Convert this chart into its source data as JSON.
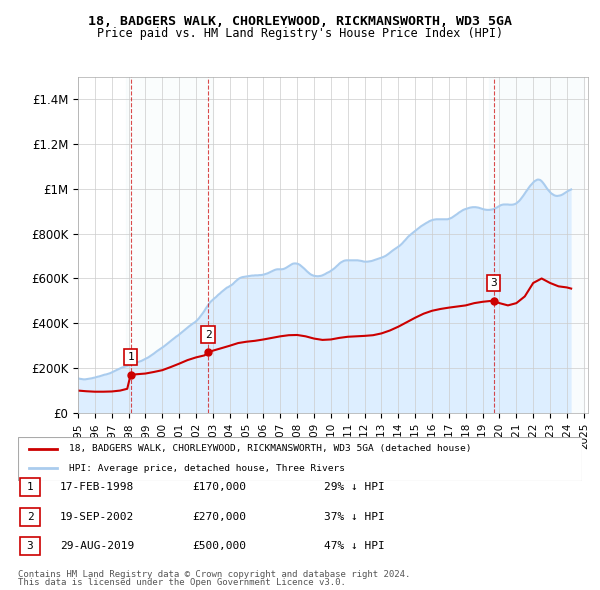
{
  "title": "18, BADGERS WALK, CHORLEYWOOD, RICKMANSWORTH, WD3 5GA",
  "subtitle": "Price paid vs. HM Land Registry's House Price Index (HPI)",
  "red_label": "18, BADGERS WALK, CHORLEYWOOD, RICKMANSWORTH, WD3 5GA (detached house)",
  "blue_label": "HPI: Average price, detached house, Three Rivers",
  "footer1": "Contains HM Land Registry data © Crown copyright and database right 2024.",
  "footer2": "This data is licensed under the Open Government Licence v3.0.",
  "sales": [
    {
      "num": 1,
      "date_str": "17-FEB-1998",
      "date_x": 1998.12,
      "price": 170000,
      "pct": "29% ↓ HPI"
    },
    {
      "num": 2,
      "date_str": "19-SEP-2002",
      "date_x": 2002.72,
      "price": 270000,
      "pct": "37% ↓ HPI"
    },
    {
      "num": 3,
      "date_str": "29-AUG-2019",
      "date_x": 2019.66,
      "price": 500000,
      "pct": "47% ↓ HPI"
    }
  ],
  "hpi_x": [
    1995.0,
    1995.08,
    1995.17,
    1995.25,
    1995.33,
    1995.42,
    1995.5,
    1995.58,
    1995.67,
    1995.75,
    1995.83,
    1995.92,
    1996.0,
    1996.08,
    1996.17,
    1996.25,
    1996.33,
    1996.42,
    1996.5,
    1996.58,
    1996.67,
    1996.75,
    1996.83,
    1996.92,
    1997.0,
    1997.08,
    1997.17,
    1997.25,
    1997.33,
    1997.42,
    1997.5,
    1997.58,
    1997.67,
    1997.75,
    1997.83,
    1997.92,
    1998.0,
    1998.08,
    1998.17,
    1998.25,
    1998.33,
    1998.42,
    1998.5,
    1998.58,
    1998.67,
    1998.75,
    1998.83,
    1998.92,
    1999.0,
    1999.08,
    1999.17,
    1999.25,
    1999.33,
    1999.42,
    1999.5,
    1999.58,
    1999.67,
    1999.75,
    1999.83,
    1999.92,
    2000.0,
    2000.08,
    2000.17,
    2000.25,
    2000.33,
    2000.42,
    2000.5,
    2000.58,
    2000.67,
    2000.75,
    2000.83,
    2000.92,
    2001.0,
    2001.08,
    2001.17,
    2001.25,
    2001.33,
    2001.42,
    2001.5,
    2001.58,
    2001.67,
    2001.75,
    2001.83,
    2001.92,
    2002.0,
    2002.08,
    2002.17,
    2002.25,
    2002.33,
    2002.42,
    2002.5,
    2002.58,
    2002.67,
    2002.75,
    2002.83,
    2002.92,
    2003.0,
    2003.08,
    2003.17,
    2003.25,
    2003.33,
    2003.42,
    2003.5,
    2003.58,
    2003.67,
    2003.75,
    2003.83,
    2003.92,
    2004.0,
    2004.08,
    2004.17,
    2004.25,
    2004.33,
    2004.42,
    2004.5,
    2004.58,
    2004.67,
    2004.75,
    2004.83,
    2004.92,
    2005.0,
    2005.08,
    2005.17,
    2005.25,
    2005.33,
    2005.42,
    2005.5,
    2005.58,
    2005.67,
    2005.75,
    2005.83,
    2005.92,
    2006.0,
    2006.08,
    2006.17,
    2006.25,
    2006.33,
    2006.42,
    2006.5,
    2006.58,
    2006.67,
    2006.75,
    2006.83,
    2006.92,
    2007.0,
    2007.08,
    2007.17,
    2007.25,
    2007.33,
    2007.42,
    2007.5,
    2007.58,
    2007.67,
    2007.75,
    2007.83,
    2007.92,
    2008.0,
    2008.08,
    2008.17,
    2008.25,
    2008.33,
    2008.42,
    2008.5,
    2008.58,
    2008.67,
    2008.75,
    2008.83,
    2008.92,
    2009.0,
    2009.08,
    2009.17,
    2009.25,
    2009.33,
    2009.42,
    2009.5,
    2009.58,
    2009.67,
    2009.75,
    2009.83,
    2009.92,
    2010.0,
    2010.08,
    2010.17,
    2010.25,
    2010.33,
    2010.42,
    2010.5,
    2010.58,
    2010.67,
    2010.75,
    2010.83,
    2010.92,
    2011.0,
    2011.08,
    2011.17,
    2011.25,
    2011.33,
    2011.42,
    2011.5,
    2011.58,
    2011.67,
    2011.75,
    2011.83,
    2011.92,
    2012.0,
    2012.08,
    2012.17,
    2012.25,
    2012.33,
    2012.42,
    2012.5,
    2012.58,
    2012.67,
    2012.75,
    2012.83,
    2012.92,
    2013.0,
    2013.08,
    2013.17,
    2013.25,
    2013.33,
    2013.42,
    2013.5,
    2013.58,
    2013.67,
    2013.75,
    2013.83,
    2013.92,
    2014.0,
    2014.08,
    2014.17,
    2014.25,
    2014.33,
    2014.42,
    2014.5,
    2014.58,
    2014.67,
    2014.75,
    2014.83,
    2014.92,
    2015.0,
    2015.08,
    2015.17,
    2015.25,
    2015.33,
    2015.42,
    2015.5,
    2015.58,
    2015.67,
    2015.75,
    2015.83,
    2015.92,
    2016.0,
    2016.08,
    2016.17,
    2016.25,
    2016.33,
    2016.42,
    2016.5,
    2016.58,
    2016.67,
    2016.75,
    2016.83,
    2016.92,
    2017.0,
    2017.08,
    2017.17,
    2017.25,
    2017.33,
    2017.42,
    2017.5,
    2017.58,
    2017.67,
    2017.75,
    2017.83,
    2017.92,
    2018.0,
    2018.08,
    2018.17,
    2018.25,
    2018.33,
    2018.42,
    2018.5,
    2018.58,
    2018.67,
    2018.75,
    2018.83,
    2018.92,
    2019.0,
    2019.08,
    2019.17,
    2019.25,
    2019.33,
    2019.42,
    2019.5,
    2019.58,
    2019.67,
    2019.75,
    2019.83,
    2019.92,
    2020.0,
    2020.08,
    2020.17,
    2020.25,
    2020.33,
    2020.42,
    2020.5,
    2020.58,
    2020.67,
    2020.75,
    2020.83,
    2020.92,
    2021.0,
    2021.08,
    2021.17,
    2021.25,
    2021.33,
    2021.42,
    2021.5,
    2021.58,
    2021.67,
    2021.75,
    2021.83,
    2021.92,
    2022.0,
    2022.08,
    2022.17,
    2022.25,
    2022.33,
    2022.42,
    2022.5,
    2022.58,
    2022.67,
    2022.75,
    2022.83,
    2022.92,
    2023.0,
    2023.08,
    2023.17,
    2023.25,
    2023.33,
    2023.42,
    2023.5,
    2023.58,
    2023.67,
    2023.75,
    2023.83,
    2023.92,
    2024.0,
    2024.08,
    2024.17,
    2024.25
  ],
  "hpi_y": [
    155000,
    153000,
    152000,
    151000,
    150000,
    150000,
    151000,
    152000,
    153000,
    154000,
    155000,
    157000,
    158000,
    160000,
    162000,
    163000,
    165000,
    167000,
    169000,
    171000,
    172000,
    174000,
    176000,
    178000,
    181000,
    184000,
    187000,
    190000,
    193000,
    196000,
    199000,
    202000,
    204000,
    206000,
    208000,
    210000,
    213000,
    216000,
    218000,
    220000,
    222000,
    224000,
    226000,
    228000,
    230000,
    232000,
    235000,
    238000,
    241000,
    244000,
    248000,
    252000,
    256000,
    260000,
    265000,
    270000,
    275000,
    279000,
    283000,
    287000,
    292000,
    296000,
    301000,
    306000,
    311000,
    316000,
    321000,
    326000,
    331000,
    336000,
    341000,
    345000,
    350000,
    355000,
    360000,
    365000,
    371000,
    376000,
    381000,
    386000,
    391000,
    396000,
    400000,
    404000,
    409000,
    415000,
    422000,
    430000,
    438000,
    447000,
    456000,
    466000,
    476000,
    485000,
    493000,
    500000,
    505000,
    511000,
    516000,
    522000,
    528000,
    533000,
    539000,
    544000,
    550000,
    555000,
    559000,
    562000,
    566000,
    570000,
    574000,
    580000,
    586000,
    592000,
    597000,
    601000,
    604000,
    606000,
    607000,
    608000,
    609000,
    610000,
    611000,
    612000,
    613000,
    613000,
    614000,
    614000,
    614000,
    615000,
    615000,
    616000,
    617000,
    619000,
    621000,
    623000,
    626000,
    629000,
    632000,
    635000,
    638000,
    640000,
    641000,
    641000,
    641000,
    641000,
    642000,
    644000,
    647000,
    651000,
    655000,
    659000,
    663000,
    666000,
    667000,
    667000,
    666000,
    664000,
    660000,
    655000,
    650000,
    644000,
    638000,
    632000,
    626000,
    621000,
    617000,
    614000,
    612000,
    611000,
    610000,
    610000,
    611000,
    612000,
    614000,
    617000,
    620000,
    624000,
    627000,
    630000,
    634000,
    638000,
    643000,
    648000,
    654000,
    660000,
    666000,
    671000,
    675000,
    678000,
    680000,
    681000,
    681000,
    681000,
    681000,
    681000,
    681000,
    681000,
    681000,
    681000,
    680000,
    679000,
    678000,
    676000,
    675000,
    675000,
    675000,
    676000,
    677000,
    678000,
    680000,
    682000,
    684000,
    686000,
    688000,
    690000,
    692000,
    695000,
    698000,
    701000,
    705000,
    710000,
    715000,
    720000,
    725000,
    729000,
    733000,
    737000,
    741000,
    746000,
    752000,
    758000,
    765000,
    772000,
    779000,
    786000,
    792000,
    797000,
    802000,
    807000,
    812000,
    817000,
    822000,
    827000,
    832000,
    836000,
    840000,
    844000,
    848000,
    851000,
    855000,
    858000,
    860000,
    862000,
    863000,
    864000,
    864000,
    864000,
    864000,
    864000,
    864000,
    864000,
    864000,
    864000,
    866000,
    868000,
    871000,
    875000,
    879000,
    884000,
    888000,
    893000,
    897000,
    901000,
    905000,
    908000,
    910000,
    912000,
    914000,
    916000,
    917000,
    918000,
    918000,
    918000,
    917000,
    916000,
    914000,
    912000,
    910000,
    908000,
    907000,
    906000,
    906000,
    906000,
    907000,
    908000,
    910000,
    913000,
    916000,
    920000,
    924000,
    927000,
    929000,
    930000,
    930000,
    930000,
    930000,
    929000,
    929000,
    929000,
    930000,
    932000,
    935000,
    940000,
    946000,
    953000,
    961000,
    970000,
    979000,
    988000,
    997000,
    1006000,
    1014000,
    1021000,
    1028000,
    1034000,
    1038000,
    1041000,
    1041000,
    1039000,
    1034000,
    1027000,
    1018000,
    1009000,
    1000000,
    992000,
    985000,
    979000,
    975000,
    971000,
    969000,
    968000,
    969000,
    970000,
    972000,
    975000,
    979000,
    983000,
    987000,
    991000,
    994000,
    997000
  ],
  "red_x": [
    1995.0,
    1995.5,
    1996.0,
    1996.5,
    1997.0,
    1997.5,
    1997.92,
    1998.12,
    1998.5,
    1999.0,
    1999.5,
    2000.0,
    2000.5,
    2001.0,
    2001.5,
    2002.0,
    2002.5,
    2002.72,
    2003.0,
    2003.5,
    2004.0,
    2004.5,
    2005.0,
    2005.5,
    2006.0,
    2006.5,
    2007.0,
    2007.5,
    2008.0,
    2008.5,
    2009.0,
    2009.5,
    2010.0,
    2010.5,
    2011.0,
    2011.5,
    2012.0,
    2012.5,
    2013.0,
    2013.5,
    2014.0,
    2014.5,
    2015.0,
    2015.5,
    2016.0,
    2016.5,
    2017.0,
    2017.5,
    2018.0,
    2018.5,
    2019.0,
    2019.5,
    2019.66,
    2020.0,
    2020.5,
    2021.0,
    2021.5,
    2022.0,
    2022.5,
    2023.0,
    2023.5,
    2024.0,
    2024.25
  ],
  "red_y": [
    100000,
    97000,
    95000,
    95000,
    96000,
    100000,
    108000,
    170000,
    173000,
    176000,
    183000,
    191000,
    205000,
    220000,
    236000,
    248000,
    257000,
    270000,
    278000,
    289000,
    300000,
    312000,
    318000,
    322000,
    328000,
    335000,
    342000,
    347000,
    348000,
    342000,
    332000,
    326000,
    328000,
    335000,
    340000,
    342000,
    344000,
    347000,
    355000,
    368000,
    385000,
    405000,
    425000,
    443000,
    456000,
    464000,
    470000,
    475000,
    480000,
    490000,
    496000,
    500000,
    500000,
    490000,
    480000,
    490000,
    520000,
    580000,
    600000,
    580000,
    565000,
    560000,
    555000
  ],
  "ylim": [
    0,
    1500000
  ],
  "yticks": [
    0,
    200000,
    400000,
    600000,
    800000,
    1000000,
    1200000,
    1400000
  ],
  "xlim": [
    1995.0,
    2025.25
  ],
  "xticks": [
    1995,
    1996,
    1997,
    1998,
    1999,
    2000,
    2001,
    2002,
    2003,
    2004,
    2005,
    2006,
    2007,
    2008,
    2009,
    2010,
    2011,
    2012,
    2013,
    2014,
    2015,
    2016,
    2017,
    2018,
    2019,
    2020,
    2021,
    2022,
    2023,
    2024,
    2025
  ],
  "red_color": "#cc0000",
  "blue_color": "#aaccee",
  "blue_fill_color": "#ddeeff",
  "shade_color": "#ddeeff",
  "vline_color": "#cc0000",
  "grid_color": "#cccccc",
  "bg_color": "#ffffff",
  "box_color": "#cc0000"
}
